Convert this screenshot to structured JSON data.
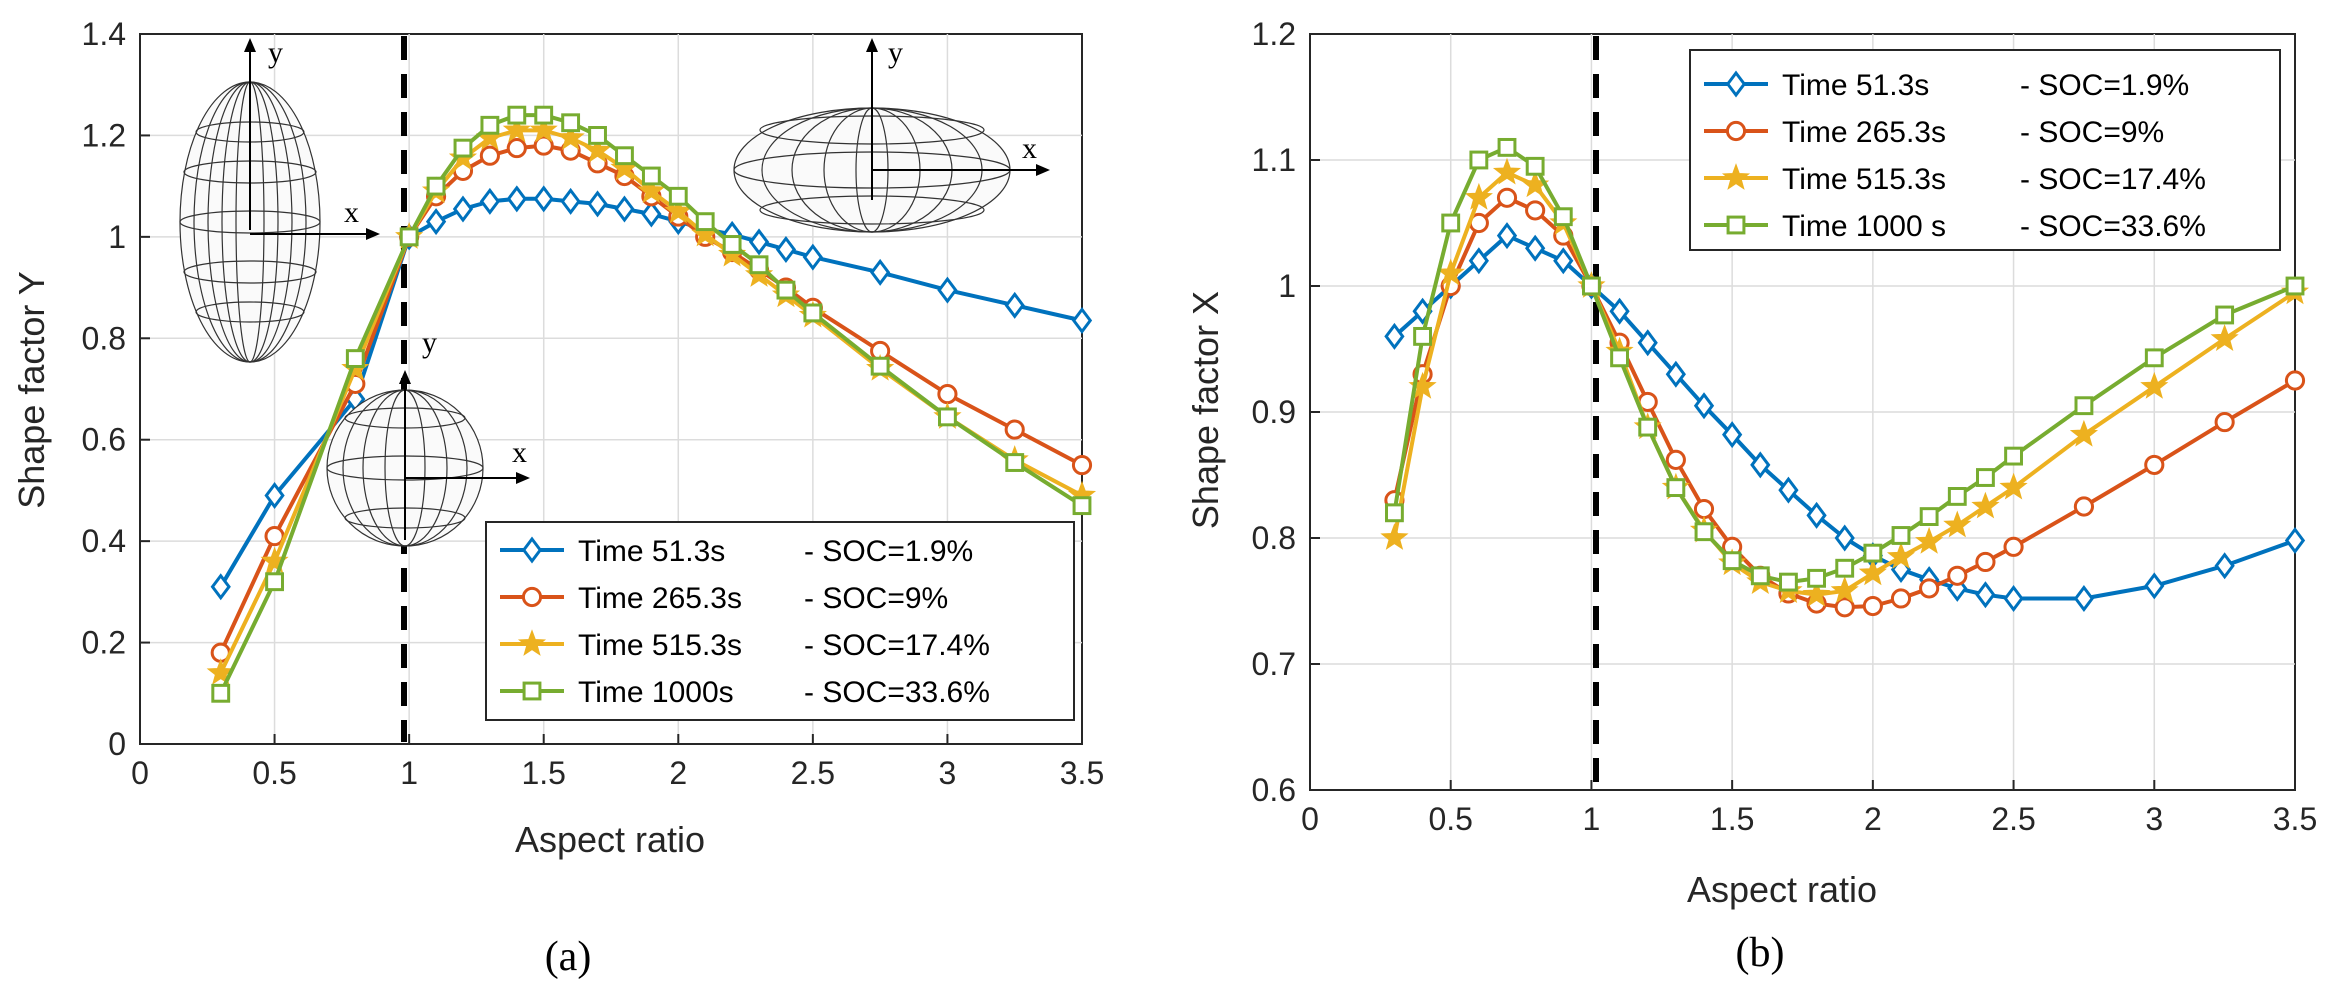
{
  "chart_data": [
    {
      "type": "line",
      "panel_label": "(a)",
      "xlabel": "Aspect ratio",
      "ylabel": "Shape factor Y",
      "xlim": [
        0,
        3.5
      ],
      "ylim": [
        0,
        1.4
      ],
      "xticks": [
        "0",
        "0.5",
        "1",
        "1.5",
        "2",
        "2.5",
        "3",
        "3.5"
      ],
      "yticks": [
        "0",
        "0.2",
        "0.4",
        "0.6",
        "0.8",
        "1",
        "1.2",
        "1.4"
      ],
      "grid": true,
      "legend_position": "bottom-right",
      "reference_line_x": 1,
      "inset_axis_labels": {
        "prolate": [
          "y",
          "x"
        ],
        "sphere": [
          "y",
          "x"
        ],
        "oblate": [
          "x"
        ]
      },
      "series": [
        {
          "name": "Time 51.3s",
          "soc": "SOC=1.9%",
          "color": "#0072BD",
          "marker": "diamond",
          "x": [
            0.3,
            0.5,
            0.8,
            1,
            1.1,
            1.2,
            1.3,
            1.4,
            1.5,
            1.6,
            1.7,
            1.8,
            1.9,
            2.0,
            2.1,
            2.2,
            2.3,
            2.4,
            2.5,
            2.75,
            3.0,
            3.25,
            3.5
          ],
          "y": [
            0.31,
            0.49,
            0.68,
            1.0,
            1.03,
            1.055,
            1.07,
            1.075,
            1.075,
            1.07,
            1.065,
            1.055,
            1.045,
            1.03,
            1.015,
            1.005,
            0.99,
            0.975,
            0.96,
            0.93,
            0.895,
            0.865,
            0.835
          ]
        },
        {
          "name": "Time 265.3s",
          "soc": "SOC=9%",
          "color": "#D95319",
          "marker": "circle",
          "x": [
            0.3,
            0.5,
            0.8,
            1,
            1.1,
            1.2,
            1.3,
            1.4,
            1.5,
            1.6,
            1.7,
            1.8,
            1.9,
            2.0,
            2.1,
            2.2,
            2.3,
            2.4,
            2.5,
            2.75,
            3.0,
            3.25,
            3.5
          ],
          "y": [
            0.18,
            0.41,
            0.71,
            1.0,
            1.08,
            1.13,
            1.16,
            1.175,
            1.18,
            1.17,
            1.145,
            1.12,
            1.08,
            1.04,
            1.0,
            0.97,
            0.935,
            0.9,
            0.86,
            0.775,
            0.69,
            0.62,
            0.55
          ]
        },
        {
          "name": "Time 515.3s",
          "soc": "SOC=17.4%",
          "color": "#EDB120",
          "marker": "star",
          "x": [
            0.3,
            0.5,
            0.8,
            1,
            1.1,
            1.2,
            1.3,
            1.4,
            1.5,
            1.6,
            1.7,
            1.8,
            1.9,
            2.0,
            2.1,
            2.2,
            2.3,
            2.4,
            2.5,
            2.75,
            3.0,
            3.25,
            3.5
          ],
          "y": [
            0.14,
            0.36,
            0.74,
            1.0,
            1.09,
            1.155,
            1.195,
            1.21,
            1.21,
            1.195,
            1.17,
            1.135,
            1.09,
            1.05,
            1.005,
            0.965,
            0.925,
            0.885,
            0.845,
            0.74,
            0.645,
            0.56,
            0.49
          ]
        },
        {
          "name": "Time 1000s",
          "soc": "SOC=33.6%",
          "color": "#77AC30",
          "marker": "square",
          "x": [
            0.3,
            0.5,
            0.8,
            1,
            1.1,
            1.2,
            1.3,
            1.4,
            1.5,
            1.6,
            1.7,
            1.8,
            1.9,
            2.0,
            2.1,
            2.2,
            2.3,
            2.4,
            2.5,
            2.75,
            3.0,
            3.25,
            3.5
          ],
          "y": [
            0.1,
            0.32,
            0.76,
            1.0,
            1.1,
            1.175,
            1.22,
            1.24,
            1.24,
            1.225,
            1.2,
            1.16,
            1.12,
            1.08,
            1.03,
            0.985,
            0.945,
            0.895,
            0.85,
            0.745,
            0.645,
            0.555,
            0.47
          ]
        }
      ]
    },
    {
      "type": "line",
      "panel_label": "(b)",
      "xlabel": "Aspect ratio",
      "ylabel": "Shape factor X",
      "xlim": [
        0,
        3.5
      ],
      "ylim": [
        0.6,
        1.2
      ],
      "xticks": [
        "0",
        "0.5",
        "1",
        "1.5",
        "2",
        "2.5",
        "3",
        "3.5"
      ],
      "yticks": [
        "0.6",
        "0.7",
        "0.8",
        "0.9",
        "1",
        "1.1",
        "1.2"
      ],
      "grid": true,
      "legend_position": "top-right",
      "reference_line_x": 1,
      "series": [
        {
          "name": "Time 51.3s",
          "soc": "SOC=1.9%",
          "color": "#0072BD",
          "marker": "diamond",
          "x": [
            0.3,
            0.4,
            0.5,
            0.6,
            0.7,
            0.8,
            0.9,
            1.0,
            1.1,
            1.2,
            1.3,
            1.4,
            1.5,
            1.6,
            1.7,
            1.8,
            1.9,
            2.0,
            2.1,
            2.2,
            2.3,
            2.4,
            2.5,
            2.75,
            3.0,
            3.25,
            3.5
          ],
          "y": [
            0.96,
            0.98,
            1.0,
            1.02,
            1.04,
            1.03,
            1.02,
            1.0,
            0.98,
            0.955,
            0.93,
            0.905,
            0.882,
            0.858,
            0.838,
            0.818,
            0.8,
            0.786,
            0.775,
            0.767,
            0.76,
            0.755,
            0.752,
            0.752,
            0.762,
            0.778,
            0.798
          ]
        },
        {
          "name": "Time 265.3s",
          "soc": "SOC=9%",
          "color": "#D95319",
          "marker": "circle",
          "x": [
            0.3,
            0.4,
            0.5,
            0.6,
            0.7,
            0.8,
            0.9,
            1.0,
            1.1,
            1.2,
            1.3,
            1.4,
            1.5,
            1.6,
            1.7,
            1.8,
            1.9,
            2.0,
            2.1,
            2.2,
            2.3,
            2.4,
            2.5,
            2.75,
            3.0,
            3.25,
            3.5
          ],
          "y": [
            0.83,
            0.93,
            1.0,
            1.05,
            1.07,
            1.06,
            1.04,
            1.0,
            0.955,
            0.908,
            0.862,
            0.823,
            0.793,
            0.77,
            0.756,
            0.748,
            0.745,
            0.746,
            0.752,
            0.76,
            0.77,
            0.781,
            0.793,
            0.825,
            0.858,
            0.892,
            0.925
          ]
        },
        {
          "name": "Time 515.3s",
          "soc": "SOC=17.4%",
          "color": "#EDB120",
          "marker": "star",
          "x": [
            0.3,
            0.4,
            0.5,
            0.6,
            0.7,
            0.8,
            0.9,
            1.0,
            1.1,
            1.2,
            1.3,
            1.4,
            1.5,
            1.6,
            1.7,
            1.8,
            1.9,
            2.0,
            2.1,
            2.2,
            2.3,
            2.4,
            2.5,
            2.75,
            3.0,
            3.25,
            3.5
          ],
          "y": [
            0.8,
            0.92,
            1.01,
            1.07,
            1.09,
            1.08,
            1.05,
            1.0,
            0.948,
            0.888,
            0.84,
            0.806,
            0.78,
            0.765,
            0.758,
            0.755,
            0.758,
            0.772,
            0.785,
            0.797,
            0.81,
            0.825,
            0.84,
            0.882,
            0.92,
            0.958,
            0.995
          ]
        },
        {
          "name": "Time 1000 s",
          "soc": "SOC=33.6%",
          "color": "#77AC30",
          "marker": "square",
          "x": [
            0.3,
            0.4,
            0.5,
            0.6,
            0.7,
            0.8,
            0.9,
            1.0,
            1.1,
            1.2,
            1.3,
            1.4,
            1.5,
            1.6,
            1.7,
            1.8,
            1.9,
            2.0,
            2.1,
            2.2,
            2.3,
            2.4,
            2.5,
            2.75,
            3.0,
            3.25,
            3.5
          ],
          "y": [
            0.82,
            0.96,
            1.05,
            1.1,
            1.11,
            1.095,
            1.055,
            1.0,
            0.943,
            0.888,
            0.84,
            0.805,
            0.782,
            0.77,
            0.765,
            0.768,
            0.776,
            0.788,
            0.802,
            0.817,
            0.833,
            0.848,
            0.865,
            0.905,
            0.943,
            0.977,
            1.0
          ]
        }
      ]
    }
  ]
}
